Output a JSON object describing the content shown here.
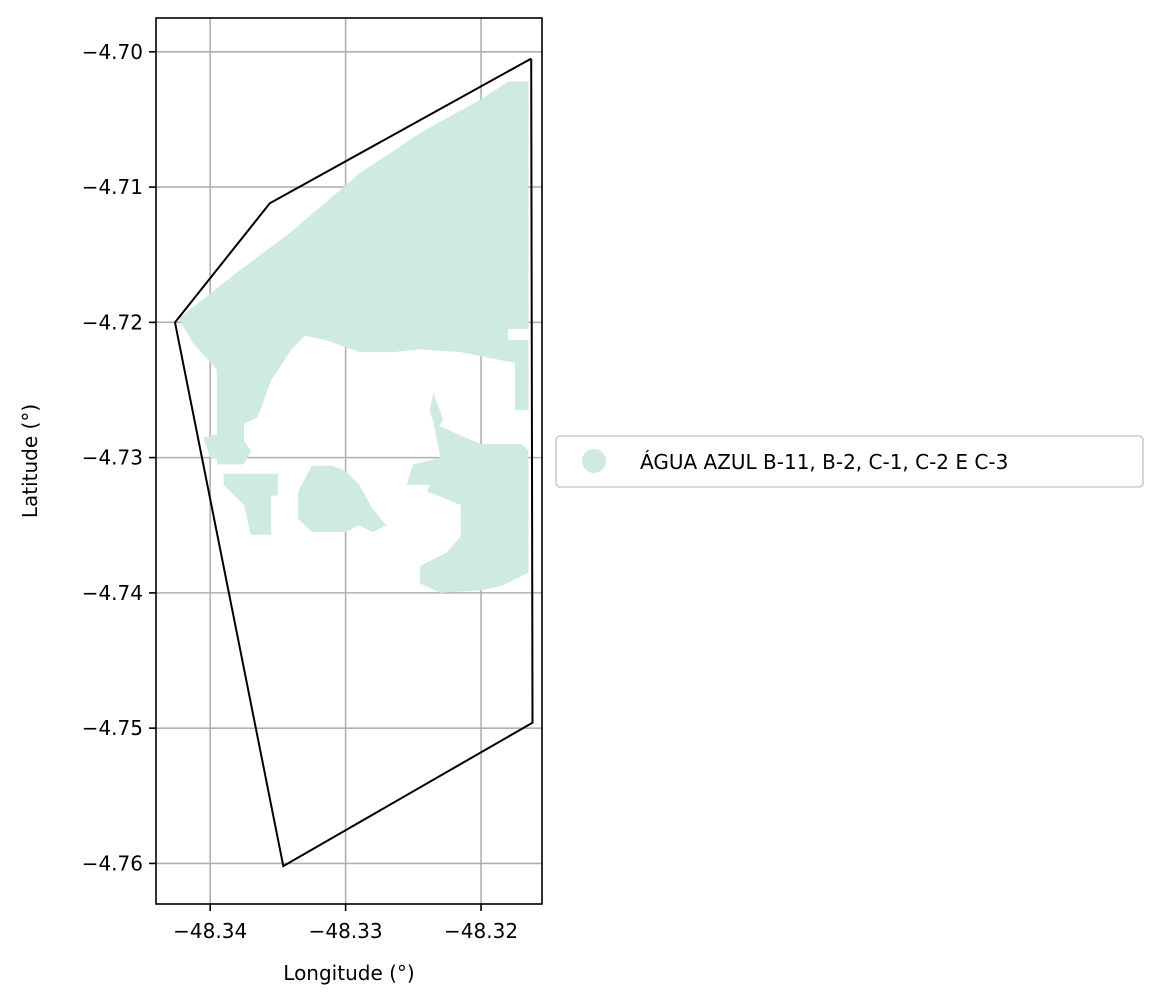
{
  "chart_data": {
    "type": "map",
    "title": "",
    "xlabel": "Longitude (°)",
    "ylabel": "Latitude (°)",
    "xlim": [
      -48.344,
      -48.3155
    ],
    "ylim": [
      -4.763,
      -4.6975
    ],
    "xticks": [
      -48.34,
      -48.33,
      -48.32
    ],
    "xtick_labels": [
      "−48.34",
      "−48.33",
      "−48.32"
    ],
    "yticks": [
      -4.7,
      -4.71,
      -4.72,
      -4.73,
      -4.74,
      -4.75,
      -4.76
    ],
    "ytick_labels": [
      "−4.70",
      "−4.71",
      "−4.72",
      "−4.73",
      "−4.74",
      "−4.75",
      "−4.76"
    ],
    "grid": true,
    "legend_position": "center-right outside",
    "boundary": {
      "color": "#000000",
      "points": [
        [
          -48.3163,
          -4.7005
        ],
        [
          -48.3356,
          -4.7112
        ],
        [
          -48.3426,
          -4.72
        ],
        [
          -48.3346,
          -4.7602
        ],
        [
          -48.3162,
          -4.7496
        ],
        [
          -48.3163,
          -4.7005
        ]
      ]
    },
    "region": {
      "name": "ÁGUA AZUL B-11, B-2, C-1, C-2 E C-3",
      "color": "#cfeade",
      "polygons": [
        [
          [
            -48.3423,
            -4.7197
          ],
          [
            -48.338,
            -4.7163
          ],
          [
            -48.334,
            -4.7133
          ],
          [
            -48.329,
            -4.709
          ],
          [
            -48.3245,
            -4.706
          ],
          [
            -48.32,
            -4.7035
          ],
          [
            -48.318,
            -4.7022
          ],
          [
            -48.3165,
            -4.7022
          ],
          [
            -48.3165,
            -4.7205
          ],
          [
            -48.318,
            -4.7205
          ],
          [
            -48.318,
            -4.7213
          ],
          [
            -48.3165,
            -4.7213
          ],
          [
            -48.3165,
            -4.7265
          ],
          [
            -48.3175,
            -4.7265
          ],
          [
            -48.3175,
            -4.723
          ],
          [
            -48.3215,
            -4.7222
          ],
          [
            -48.3245,
            -4.722
          ],
          [
            -48.3265,
            -4.7222
          ],
          [
            -48.329,
            -4.7222
          ],
          [
            -48.3315,
            -4.7213
          ],
          [
            -48.333,
            -4.721
          ],
          [
            -48.334,
            -4.722
          ],
          [
            -48.3355,
            -4.7243
          ],
          [
            -48.3365,
            -4.727
          ],
          [
            -48.3375,
            -4.7275
          ],
          [
            -48.3375,
            -4.7305
          ],
          [
            -48.3395,
            -4.7305
          ],
          [
            -48.3395,
            -4.7235
          ],
          [
            -48.3413,
            -4.7215
          ],
          [
            -48.3423,
            -4.7197
          ]
        ],
        [
          [
            -48.3405,
            -4.7285
          ],
          [
            -48.338,
            -4.728
          ],
          [
            -48.337,
            -4.7295
          ],
          [
            -48.3375,
            -4.7305
          ],
          [
            -48.34,
            -4.73
          ],
          [
            -48.3405,
            -4.7285
          ]
        ],
        [
          [
            -48.339,
            -4.7312
          ],
          [
            -48.335,
            -4.7312
          ],
          [
            -48.335,
            -4.7328
          ],
          [
            -48.3355,
            -4.7328
          ],
          [
            -48.3355,
            -4.7357
          ],
          [
            -48.337,
            -4.7357
          ],
          [
            -48.3375,
            -4.7335
          ],
          [
            -48.339,
            -4.732
          ],
          [
            -48.339,
            -4.7312
          ]
        ],
        [
          [
            -48.3325,
            -4.7306
          ],
          [
            -48.3305,
            -4.731
          ],
          [
            -48.33,
            -4.733
          ],
          [
            -48.329,
            -4.735
          ],
          [
            -48.328,
            -4.7355
          ],
          [
            -48.327,
            -4.735
          ],
          [
            -48.328,
            -4.7338
          ],
          [
            -48.329,
            -4.732
          ],
          [
            -48.33,
            -4.731
          ],
          [
            -48.331,
            -4.7306
          ],
          [
            -48.3325,
            -4.7306
          ]
        ],
        [
          [
            -48.3325,
            -4.7306
          ],
          [
            -48.3335,
            -4.7325
          ],
          [
            -48.3335,
            -4.7345
          ],
          [
            -48.3325,
            -4.7355
          ],
          [
            -48.33,
            -4.7355
          ],
          [
            -48.329,
            -4.735
          ],
          [
            -48.33,
            -4.733
          ],
          [
            -48.3305,
            -4.731
          ],
          [
            -48.3325,
            -4.7306
          ]
        ],
        [
          [
            -48.3235,
            -4.7275
          ],
          [
            -48.3228,
            -4.73
          ],
          [
            -48.3235,
            -4.732
          ],
          [
            -48.3255,
            -4.732
          ],
          [
            -48.325,
            -4.7305
          ],
          [
            -48.323,
            -4.73
          ],
          [
            -48.3235,
            -4.7275
          ]
        ],
        [
          [
            -48.3235,
            -4.7275
          ],
          [
            -48.32,
            -4.729
          ],
          [
            -48.317,
            -4.729
          ],
          [
            -48.3165,
            -4.7295
          ],
          [
            -48.3165,
            -4.7385
          ],
          [
            -48.3185,
            -4.7395
          ],
          [
            -48.32,
            -4.7398
          ],
          [
            -48.323,
            -4.74
          ],
          [
            -48.3245,
            -4.7393
          ],
          [
            -48.3245,
            -4.738
          ],
          [
            -48.3225,
            -4.737
          ],
          [
            -48.3215,
            -4.7358
          ],
          [
            -48.3215,
            -4.7335
          ],
          [
            -48.324,
            -4.7325
          ],
          [
            -48.3228,
            -4.73
          ],
          [
            -48.3235,
            -4.7275
          ]
        ],
        [
          [
            -48.3235,
            -4.7252
          ],
          [
            -48.3228,
            -4.7272
          ],
          [
            -48.3233,
            -4.728
          ],
          [
            -48.3238,
            -4.7265
          ],
          [
            -48.3235,
            -4.7252
          ]
        ]
      ]
    }
  }
}
